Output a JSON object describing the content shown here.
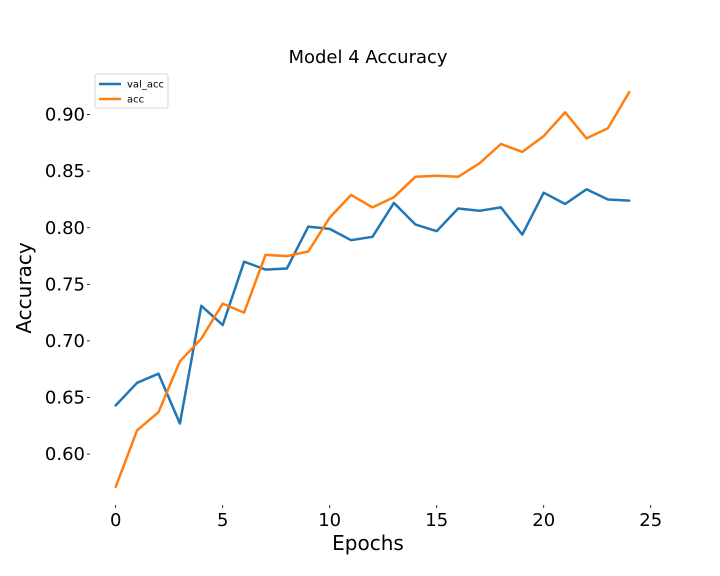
{
  "chart_data": {
    "type": "line",
    "title": "Model 4 Accuracy",
    "xlabel": "Epochs",
    "ylabel": "Accuracy",
    "xlim": [
      -1.2,
      25.2
    ],
    "ylim": [
      0.555,
      0.935
    ],
    "xticks": [
      0,
      5,
      10,
      15,
      20,
      25
    ],
    "yticks": [
      0.6,
      0.65,
      0.7,
      0.75,
      0.8,
      0.85,
      0.9
    ],
    "ytick_labels": [
      "0.60",
      "0.65",
      "0.70",
      "0.75",
      "0.80",
      "0.85",
      "0.90"
    ],
    "legend_position": "upper-left",
    "grid": false,
    "x": [
      0,
      1,
      2,
      3,
      4,
      5,
      6,
      7,
      8,
      9,
      10,
      11,
      12,
      13,
      14,
      15,
      16,
      17,
      18,
      19,
      20,
      21,
      22,
      23,
      24
    ],
    "series": [
      {
        "name": "val_acc",
        "color": "#1f77b4",
        "values": [
          0.643,
          0.663,
          0.671,
          0.627,
          0.731,
          0.714,
          0.77,
          0.763,
          0.764,
          0.801,
          0.799,
          0.789,
          0.792,
          0.822,
          0.803,
          0.797,
          0.817,
          0.815,
          0.818,
          0.794,
          0.831,
          0.821,
          0.834,
          0.825,
          0.824
        ]
      },
      {
        "name": "acc",
        "color": "#ff7f0e",
        "values": [
          0.571,
          0.621,
          0.637,
          0.682,
          0.702,
          0.733,
          0.725,
          0.776,
          0.775,
          0.779,
          0.809,
          0.829,
          0.818,
          0.827,
          0.845,
          0.846,
          0.845,
          0.857,
          0.874,
          0.867,
          0.881,
          0.902,
          0.879,
          0.888,
          0.92
        ]
      }
    ]
  }
}
